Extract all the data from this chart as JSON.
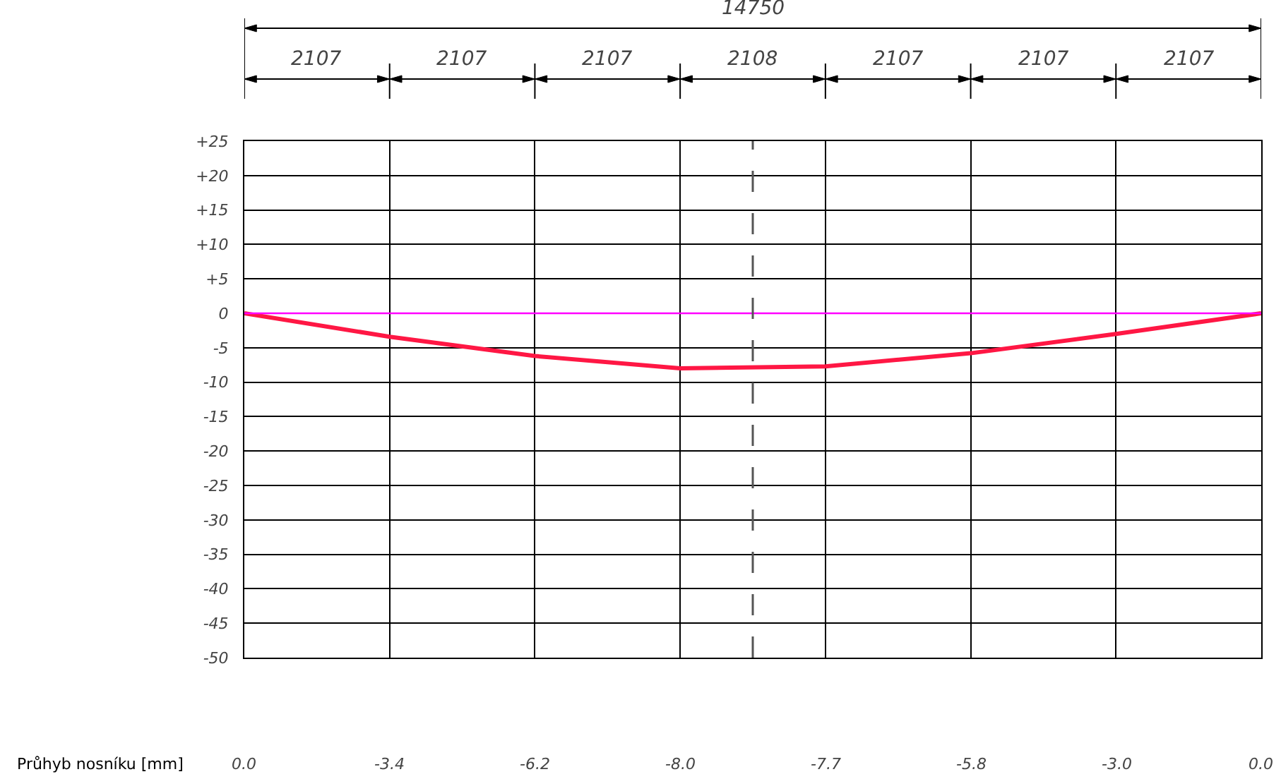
{
  "chart_data": {
    "type": "line",
    "categories": [
      null,
      null,
      null,
      null,
      null,
      null,
      null,
      null
    ],
    "series": [
      {
        "color": "#ff1744",
        "values": [
          0,
          -3.4,
          -6.2,
          -8.0,
          -7.7,
          -5.8,
          -3.0,
          0.0
        ],
        "value_labels": [
          "0.0",
          "-3.4",
          "-6.2",
          "-8.0",
          "-7.7",
          "-5.8",
          "-3.0",
          "0.0"
        ]
      }
    ],
    "ylim": [
      -50,
      25
    ],
    "yticks": [
      {
        "value": 25,
        "label": "+25"
      },
      {
        "value": 20,
        "label": "+20"
      },
      {
        "value": 15,
        "label": "+15"
      },
      {
        "value": 10,
        "label": "+10"
      },
      {
        "value": 5,
        "label": "+5"
      },
      {
        "value": 0,
        "label": "0"
      },
      {
        "value": -5,
        "label": "-5"
      },
      {
        "value": -10,
        "label": "-10"
      },
      {
        "value": -15,
        "label": "-15"
      },
      {
        "value": -20,
        "label": "-20"
      },
      {
        "value": -25,
        "label": "-25"
      },
      {
        "value": -30,
        "label": "-30"
      },
      {
        "value": -35,
        "label": "-35"
      },
      {
        "value": -40,
        "label": "-40"
      },
      {
        "value": -45,
        "label": "-45"
      },
      {
        "value": -50,
        "label": "-50"
      }
    ],
    "tick_labels": "y",
    "grid": true,
    "marker": "none",
    "line_style": "solid",
    "ref_lines": [
      {
        "axis": "y",
        "value": 0,
        "color": "#ff00ff",
        "line_style": "solid"
      },
      {
        "axis": "x",
        "color": "#555555",
        "line_style": "dashed"
      }
    ],
    "annotations": [
      "14750",
      "2107",
      "2107",
      "2107",
      "2108",
      "2107",
      "2107",
      "2107",
      "Průhyb nosníku [mm]"
    ]
  }
}
